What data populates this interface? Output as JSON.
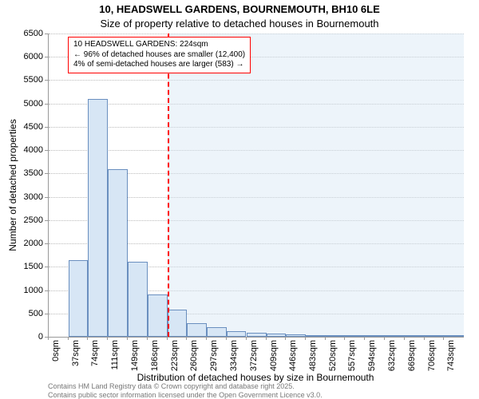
{
  "title_line1": "10, HEADSWELL GARDENS, BOURNEMOUTH, BH10 6LE",
  "title_line2": "Size of property relative to detached houses in Bournemouth",
  "title_fontsize": 13,
  "ylabel": "Number of detached properties",
  "xlabel": "Distribution of detached houses by size in Bournemouth",
  "axis_label_fontsize": 12,
  "tick_fontsize": 11,
  "chart": {
    "type": "histogram",
    "background_color": "#ffffff",
    "grid_color": "#bbbbbb",
    "bar_fill": "#d7e6f5",
    "bar_border": "#6a8fbf",
    "shade_fill": "rgba(215,230,245,0.45)",
    "marker_color": "#ff0000",
    "ylim": [
      0,
      6500
    ],
    "ytick_step": 500,
    "x_start": 0,
    "x_end": 780,
    "bin_width_sqm": 37,
    "xticks": [
      0,
      37,
      74,
      111,
      149,
      186,
      223,
      260,
      297,
      334,
      372,
      409,
      446,
      483,
      520,
      557,
      594,
      632,
      669,
      706,
      743
    ],
    "values": [
      0,
      1650,
      5100,
      3600,
      1600,
      900,
      580,
      290,
      200,
      120,
      90,
      70,
      50,
      40,
      30,
      25,
      20,
      15,
      12,
      10,
      8
    ],
    "marker_x": 224,
    "callout_line1": "10 HEADSWELL GARDENS: 224sqm",
    "callout_line2": "← 96% of detached houses are smaller (12,400)",
    "callout_line3": "4% of semi-detached houses are larger (583) →",
    "callout_fontsize": 10
  },
  "footnote_line1": "Contains HM Land Registry data © Crown copyright and database right 2025.",
  "footnote_line2": "Contains public sector information licensed under the Open Government Licence v3.0.",
  "footnote_fontsize": 9,
  "footnote_color": "#777777"
}
